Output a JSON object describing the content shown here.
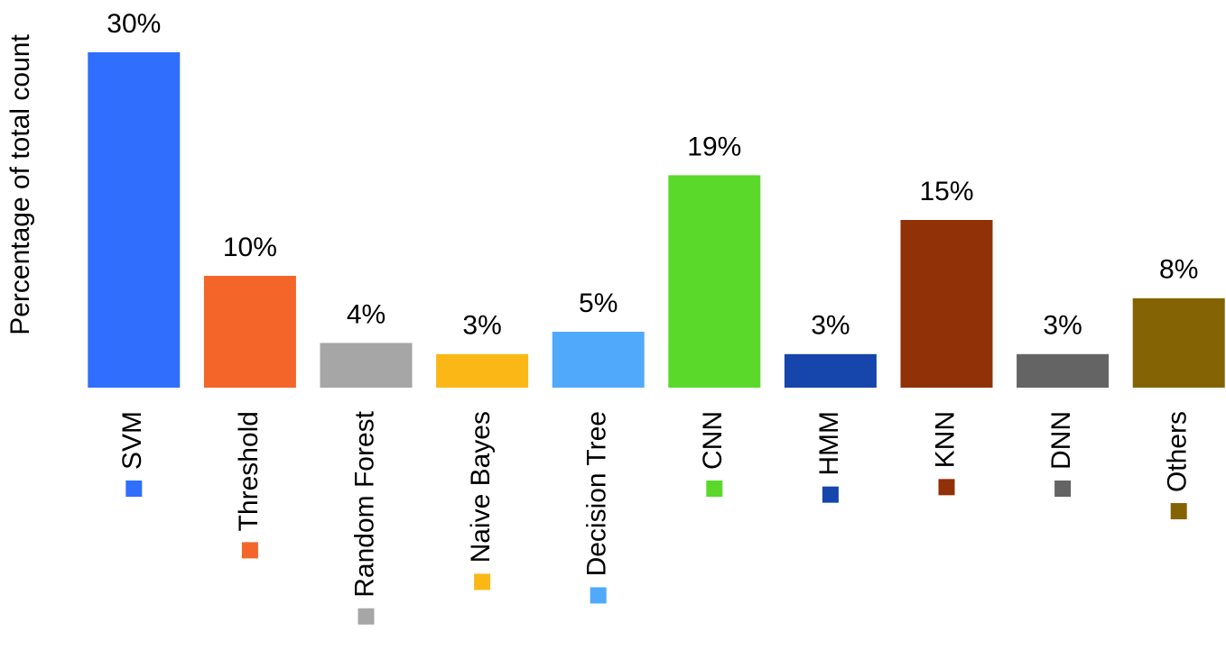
{
  "chart_data": {
    "type": "bar",
    "y_label": "Percentage of total count",
    "categories": [
      "SVM",
      "Threshold",
      "Random Forest",
      "Naive Bayes",
      "Decision Tree",
      "CNN",
      "HMM",
      "KNN",
      "DNN",
      "Others"
    ],
    "values": [
      30,
      10,
      4,
      3,
      5,
      19,
      3,
      15,
      3,
      8
    ],
    "value_labels": [
      "30%",
      "10%",
      "4%",
      "3%",
      "5%",
      "19%",
      "3%",
      "15%",
      "3%",
      "8%"
    ],
    "colors": [
      "#306efe",
      "#f4652a",
      "#a6a6a6",
      "#fbb716",
      "#50a9fb",
      "#5ad92a",
      "#1645ab",
      "#913108",
      "#646464",
      "#836304"
    ],
    "ylim": [
      0,
      30
    ]
  }
}
